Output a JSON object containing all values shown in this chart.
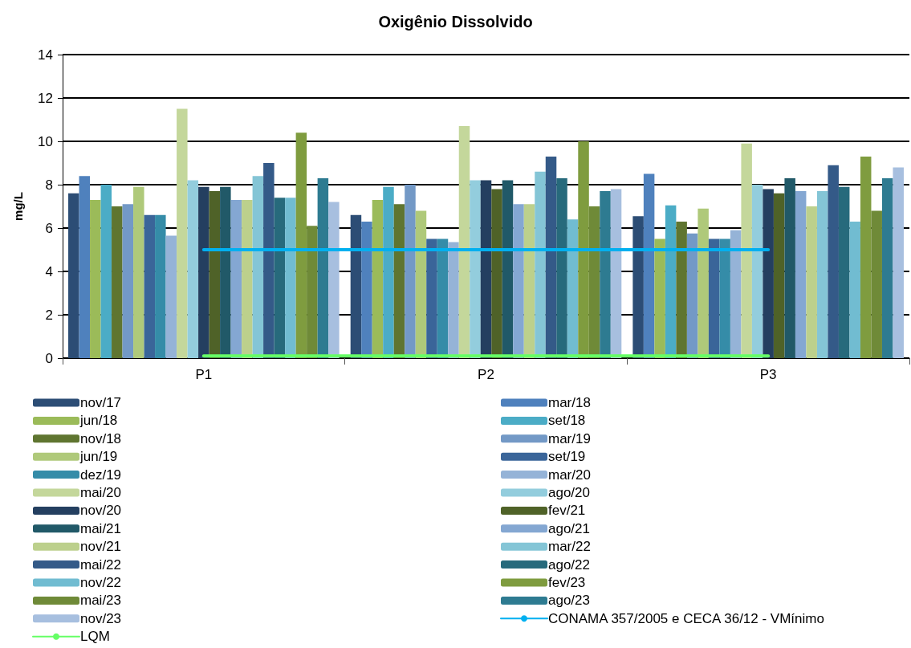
{
  "chart_data": {
    "type": "bar",
    "title": "Oxigênio Dissolvido",
    "ylabel": "mg/L",
    "categories": [
      "P1",
      "P2",
      "P3"
    ],
    "ylim": [
      0,
      14
    ],
    "yticks": [
      0,
      2,
      4,
      6,
      8,
      10,
      12,
      14
    ],
    "grid": "y",
    "legend": "bottom",
    "series": [
      {
        "name": "nov/17",
        "color": "#2c4d75",
        "values": [
          7.6,
          6.6,
          6.55
        ]
      },
      {
        "name": "mar/18",
        "color": "#4f81bd",
        "values": [
          8.4,
          6.3,
          8.5
        ]
      },
      {
        "name": "jun/18",
        "color": "#9bbb59",
        "values": [
          7.3,
          7.3,
          5.5
        ]
      },
      {
        "name": "set/18",
        "color": "#4bacc6",
        "values": [
          8.0,
          7.9,
          7.05
        ]
      },
      {
        "name": "nov/18",
        "color": "#5f7530",
        "values": [
          7.0,
          7.1,
          6.3
        ]
      },
      {
        "name": "mar/19",
        "color": "#7399c6",
        "values": [
          7.1,
          8.0,
          5.75
        ]
      },
      {
        "name": "jun/19",
        "color": "#afc97a",
        "values": [
          7.9,
          6.8,
          6.9
        ]
      },
      {
        "name": "set/19",
        "color": "#3a6599",
        "values": [
          6.6,
          5.5,
          5.5
        ]
      },
      {
        "name": "dez/19",
        "color": "#358ca8",
        "values": [
          6.6,
          5.5,
          5.5
        ]
      },
      {
        "name": "mar/20",
        "color": "#95b3d7",
        "values": [
          5.65,
          5.35,
          5.9
        ]
      },
      {
        "name": "mai/20",
        "color": "#c4d79b",
        "values": [
          11.5,
          10.7,
          9.9
        ]
      },
      {
        "name": "ago/20",
        "color": "#93cddd",
        "values": [
          8.2,
          8.2,
          8.0
        ]
      },
      {
        "name": "nov/20",
        "color": "#243f60",
        "values": [
          7.9,
          8.2,
          7.8
        ]
      },
      {
        "name": "fev/21",
        "color": "#4f6228",
        "values": [
          7.7,
          7.8,
          7.6
        ]
      },
      {
        "name": "mai/21",
        "color": "#215968",
        "values": [
          7.9,
          8.2,
          8.3
        ]
      },
      {
        "name": "ago/21",
        "color": "#84a7d2",
        "values": [
          7.3,
          7.1,
          7.7
        ]
      },
      {
        "name": "nov/21",
        "color": "#bcd08c",
        "values": [
          7.3,
          7.1,
          7.0
        ]
      },
      {
        "name": "mar/22",
        "color": "#84c5d6",
        "values": [
          8.4,
          8.6,
          7.7
        ]
      },
      {
        "name": "mai/22",
        "color": "#345a88",
        "values": [
          9.0,
          9.3,
          8.9
        ]
      },
      {
        "name": "ago/22",
        "color": "#276a7c",
        "values": [
          7.4,
          8.3,
          7.9
        ]
      },
      {
        "name": "nov/22",
        "color": "#71bcd1",
        "values": [
          7.4,
          6.4,
          6.3
        ]
      },
      {
        "name": "fev/23",
        "color": "#7f9c3f",
        "values": [
          10.4,
          10.0,
          9.3
        ]
      },
      {
        "name": "mai/23",
        "color": "#6f8a38",
        "values": [
          6.1,
          7.0,
          6.8
        ]
      },
      {
        "name": "ago/23",
        "color": "#2e7b91",
        "values": [
          8.3,
          7.7,
          8.3
        ]
      },
      {
        "name": "nov/23",
        "color": "#a7bfdf",
        "values": [
          7.2,
          7.8,
          8.8
        ]
      },
      {
        "name": "CONAMA 357/2005 e CECA 36/12 - VMínimo",
        "type": "line",
        "color": "#00b0f0",
        "line_style": "solid",
        "values": [
          5,
          5,
          5
        ]
      },
      {
        "name": "LQM",
        "type": "line",
        "color": "#66ff66",
        "line_style": "solid",
        "values": [
          0.1,
          0.1,
          0.1
        ]
      }
    ]
  }
}
